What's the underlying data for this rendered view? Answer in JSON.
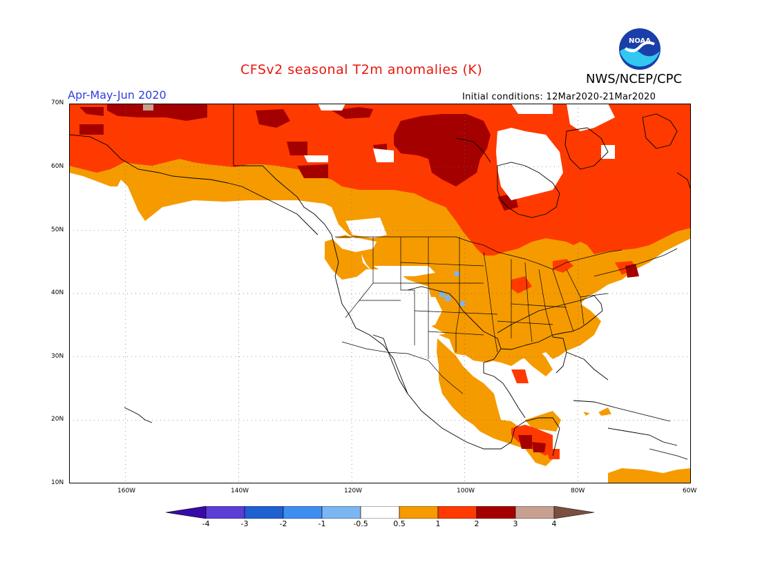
{
  "header": {
    "title": "CFSv2 seasonal T2m anomalies (K)",
    "org": "NWS/NCEP/CPC",
    "period": "Apr-May-Jun 2020",
    "init": "Initial conditions: 12Mar2020-21Mar2020",
    "logo_text": "NOAA"
  },
  "axes": {
    "lat_labels": [
      "70N",
      "60N",
      "50N",
      "40N",
      "30N",
      "20N",
      "10N"
    ],
    "lon_labels": [
      "160W",
      "140W",
      "120W",
      "100W",
      "80W",
      "60W"
    ]
  },
  "colorbar": {
    "labels": [
      "-4",
      "-3",
      "-2",
      "-1",
      "-0.5",
      "0.5",
      "1",
      "2",
      "3",
      "4"
    ],
    "colors": [
      "#3a0aa8",
      "#5a3ed6",
      "#1f5fd0",
      "#3d8ef0",
      "#7cb6f2",
      "#ffffff",
      "#f59b00",
      "#ff3a00",
      "#a50000",
      "#c8a090",
      "#7a5040"
    ]
  }
}
